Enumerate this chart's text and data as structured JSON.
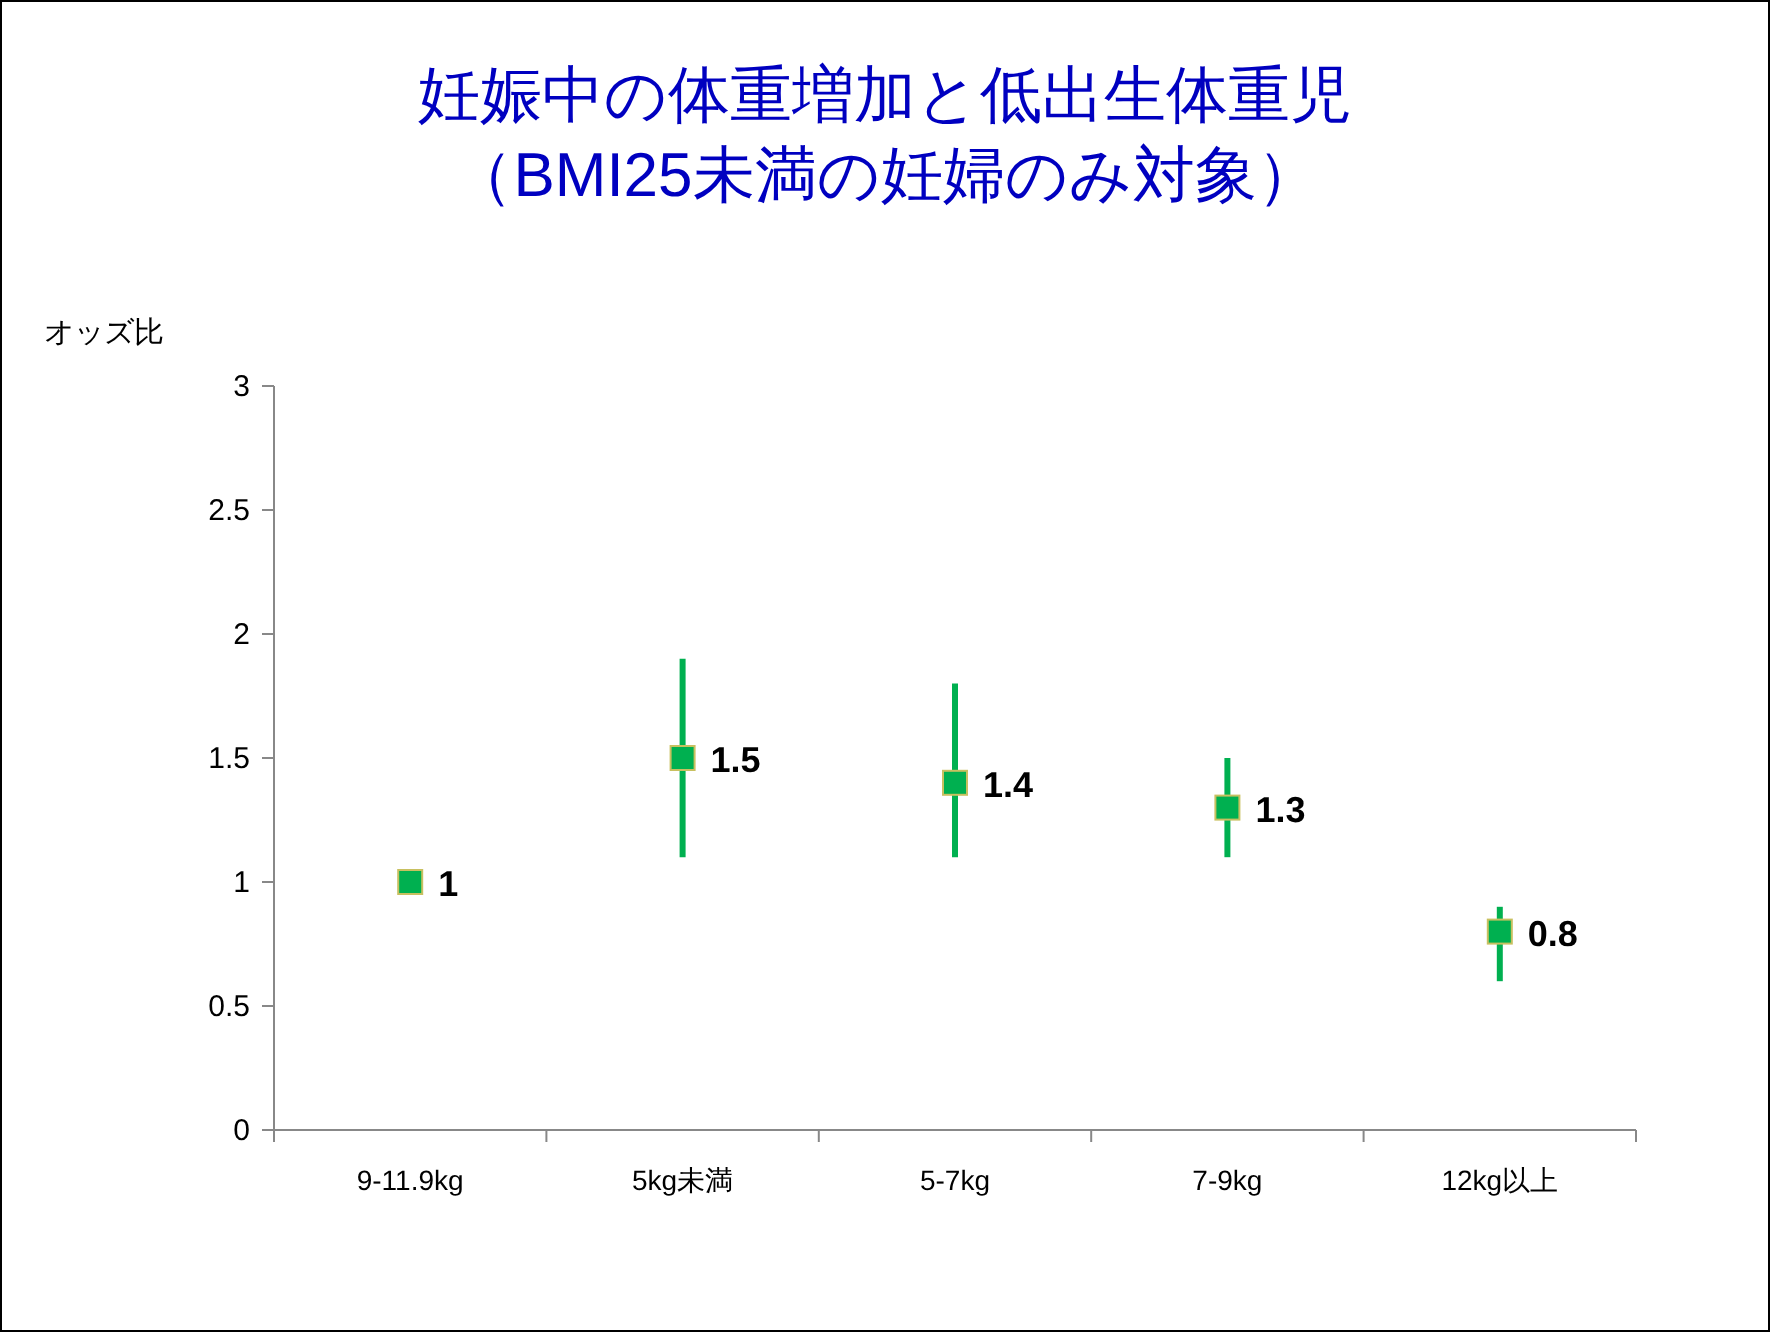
{
  "chart_data": {
    "type": "scatter",
    "title": "妊娠中の体重増加と低出生体重児",
    "subtitle": "（BMI25未満の妊婦のみ対象）",
    "ylabel": "オッズ比",
    "categories": [
      "9-11.9kg",
      "5kg未満",
      "5-7kg",
      "7-9kg",
      "12kg以上"
    ],
    "series": [
      {
        "color": "#00b050",
        "values": [
          1,
          1.5,
          1.4,
          1.3,
          0.8
        ],
        "errors": [
          null,
          [
            1.1,
            1.9
          ],
          [
            1.1,
            1.8
          ],
          [
            1.1,
            1.5
          ],
          [
            0.6,
            0.9
          ]
        ]
      }
    ],
    "ylim": [
      0,
      3
    ],
    "yticks": [
      0,
      0.5,
      1,
      1.5,
      2,
      2.5,
      3
    ],
    "grid": false,
    "marker": "square",
    "data_labels": true
  }
}
